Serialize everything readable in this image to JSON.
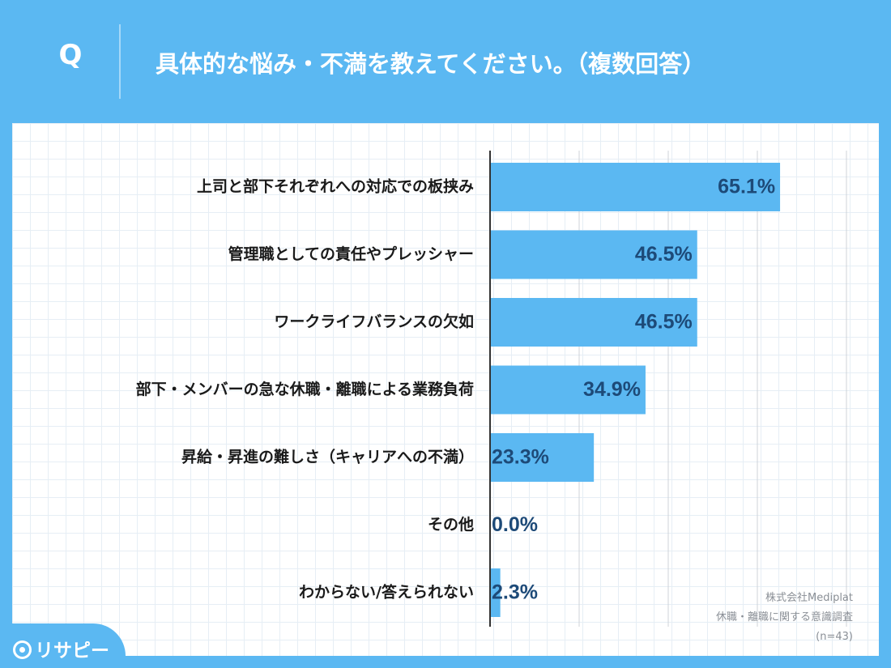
{
  "header": {
    "q_mark": "Q",
    "question": "具体的な悩み・不満を教えてください。（複数回答）"
  },
  "chart_data": {
    "type": "bar",
    "orientation": "horizontal",
    "categories": [
      "上司と部下それぞれへの対応での板挟み",
      "管理職としての責任やプレッシャー",
      "ワークライフバランスの欠如",
      "部下・メンバーの急な休職・離職による業務負荷",
      "昇給・昇進の難しさ（キャリアへの不満）",
      "その他",
      "わからない/答えられない"
    ],
    "values": [
      65.1,
      46.5,
      46.5,
      34.9,
      23.3,
      0.0,
      2.3
    ],
    "value_labels": [
      "65.1%",
      "46.5%",
      "46.5%",
      "34.9%",
      "23.3%",
      "0.0%",
      "2.3%"
    ],
    "xlim": [
      0,
      80
    ],
    "grid": "vertical gridlines every 20%",
    "bar_color": "#5bb8f2",
    "label_color": "#1d4a78"
  },
  "source": {
    "company": "株式会社Mediplat",
    "survey": "休職・離職に関する意識調査",
    "sample": "(n=43)"
  },
  "logo": {
    "text": "リサピー"
  }
}
